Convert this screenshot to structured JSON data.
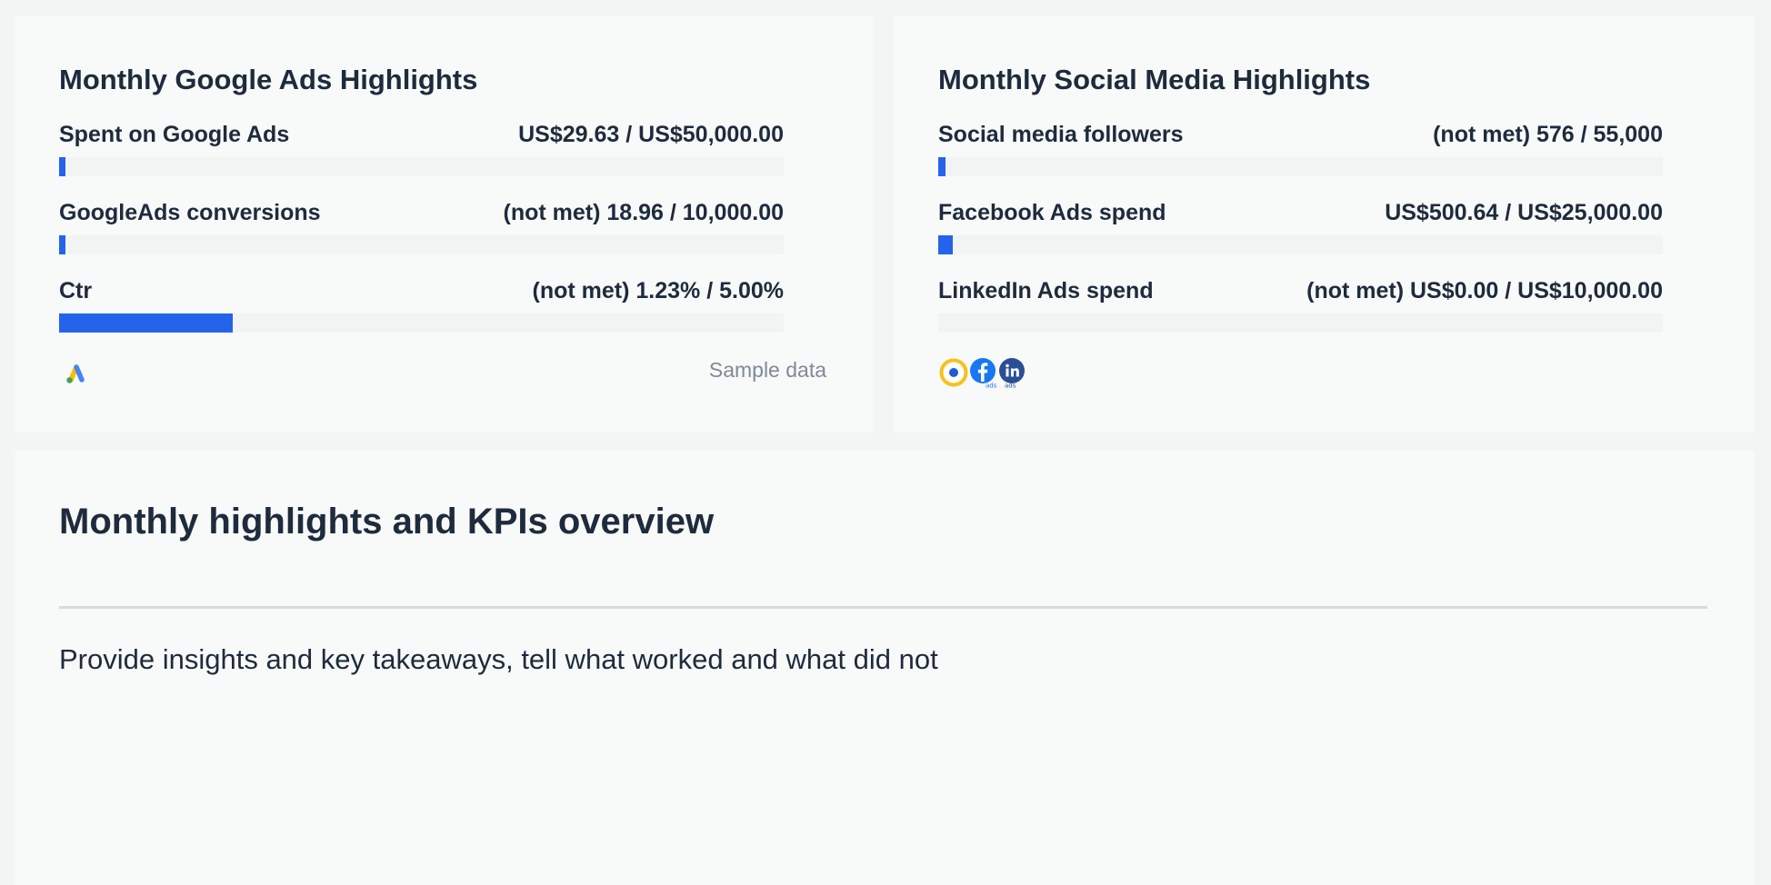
{
  "google_card": {
    "title": "Monthly Google Ads Highlights",
    "kpis": [
      {
        "label": "Spent on Google Ads",
        "value": "US$29.63 / US$50,000.00",
        "progress": 0.0006
      },
      {
        "label": "GoogleAds conversions",
        "value": "(not met) 18.96 / 10,000.00",
        "progress": 0.0019
      },
      {
        "label": "Ctr",
        "value": "(not met) 1.23% / 5.00%",
        "progress": 0.24
      }
    ],
    "footer_note": "Sample data",
    "source_icons": [
      "google-ads-icon"
    ]
  },
  "social_card": {
    "title": "Monthly Social Media Highlights",
    "kpis": [
      {
        "label": "Social media followers",
        "value": "(not met) 576 / 55,000",
        "progress": 0.0105
      },
      {
        "label": "Facebook Ads spend",
        "value": "US$500.64 / US$25,000.00",
        "progress": 0.02
      },
      {
        "label": "LinkedIn Ads spend",
        "value": "(not met) US$0.00 / US$10,000.00",
        "progress": 0
      }
    ],
    "source_icons": [
      "social-target-icon",
      "facebook-ads-icon",
      "linkedin-ads-icon"
    ],
    "icon_badges": {
      "facebook": "ads",
      "linkedin": "ads"
    }
  },
  "overview": {
    "title": "Monthly highlights and KPIs overview",
    "text": "Provide insights and key takeaways, tell what worked and what did not"
  },
  "colors": {
    "accent": "#2563eb",
    "text": "#1e2b3c",
    "muted": "#7e8a96",
    "track": "#f2f4f4",
    "google_yellow": "#fbbc04",
    "google_blue": "#4285f4",
    "google_green": "#34a853",
    "facebook_blue": "#1877f2",
    "linkedin_navy": "#2b4f96",
    "target_yellow": "#f6c21c"
  }
}
